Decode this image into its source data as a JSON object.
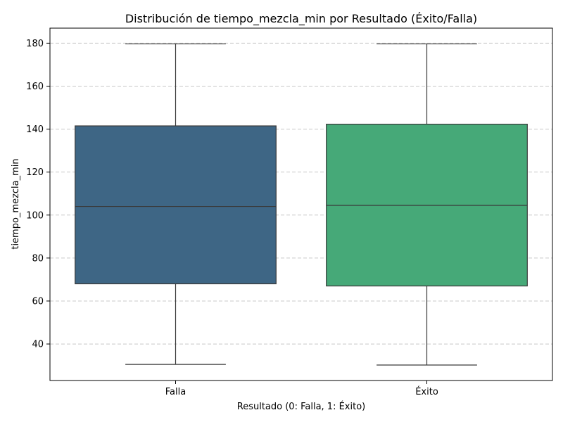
{
  "chart_data": {
    "type": "box",
    "title": "Distribución de tiempo_mezcla_min por Resultado (Éxito/Falla)",
    "xlabel": "Resultado (0: Falla, 1: Éxito)",
    "ylabel": "tiempo_mezcla_min",
    "ylim": [
      23,
      187
    ],
    "yticks": [
      40,
      60,
      80,
      100,
      120,
      140,
      160,
      180
    ],
    "grid": "y-dashed",
    "categories": [
      "Falla",
      "Éxito"
    ],
    "boxes": [
      {
        "category": "Falla",
        "whisker_low": 30.5,
        "q1": 68,
        "median": 104,
        "q3": 141.5,
        "whisker_high": 179.7,
        "color": "#3e6685"
      },
      {
        "category": "Éxito",
        "whisker_low": 30.2,
        "q1": 67,
        "median": 104.5,
        "q3": 142.3,
        "whisker_high": 179.7,
        "color": "#46a978"
      }
    ]
  }
}
